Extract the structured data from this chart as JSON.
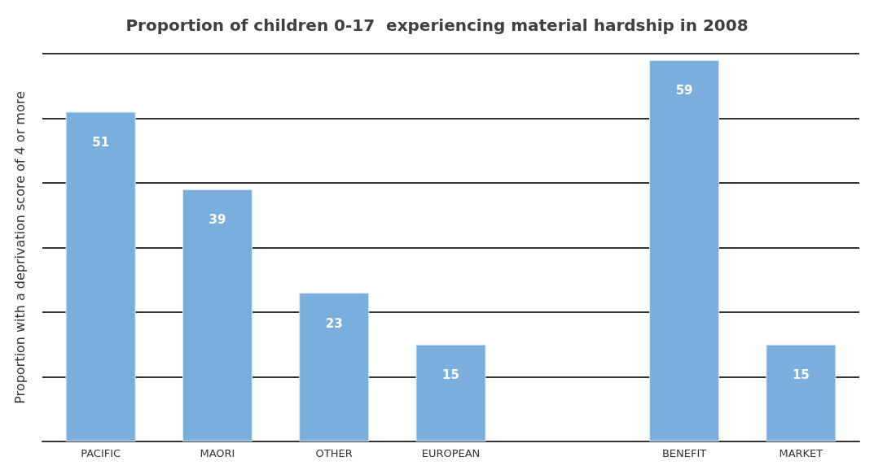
{
  "chart_data": {
    "type": "bar",
    "title": "Proportion of children 0-17  experiencing material hardship in 2008",
    "ylabel": "Proportion with a deprivation score of 4 or more",
    "categories": [
      "PACIFIC",
      "MAORI",
      "OTHER",
      "EUROPEAN",
      null,
      "BENEFIT",
      "MARKET"
    ],
    "values": [
      51,
      39,
      23,
      15,
      null,
      59,
      15
    ],
    "color": "#7aafdd",
    "ylim": [
      0,
      60
    ],
    "yticks": [
      {
        "value": 0,
        "label": null
      },
      {
        "value": 10,
        "label": null
      },
      {
        "value": 20,
        "label": null
      },
      {
        "value": 30,
        "label": null
      },
      {
        "value": 40,
        "label": null
      },
      {
        "value": 50,
        "label": null
      },
      {
        "value": 60,
        "label": null
      }
    ],
    "grid": "y",
    "tick_labels": "x",
    "data_labels": true
  }
}
